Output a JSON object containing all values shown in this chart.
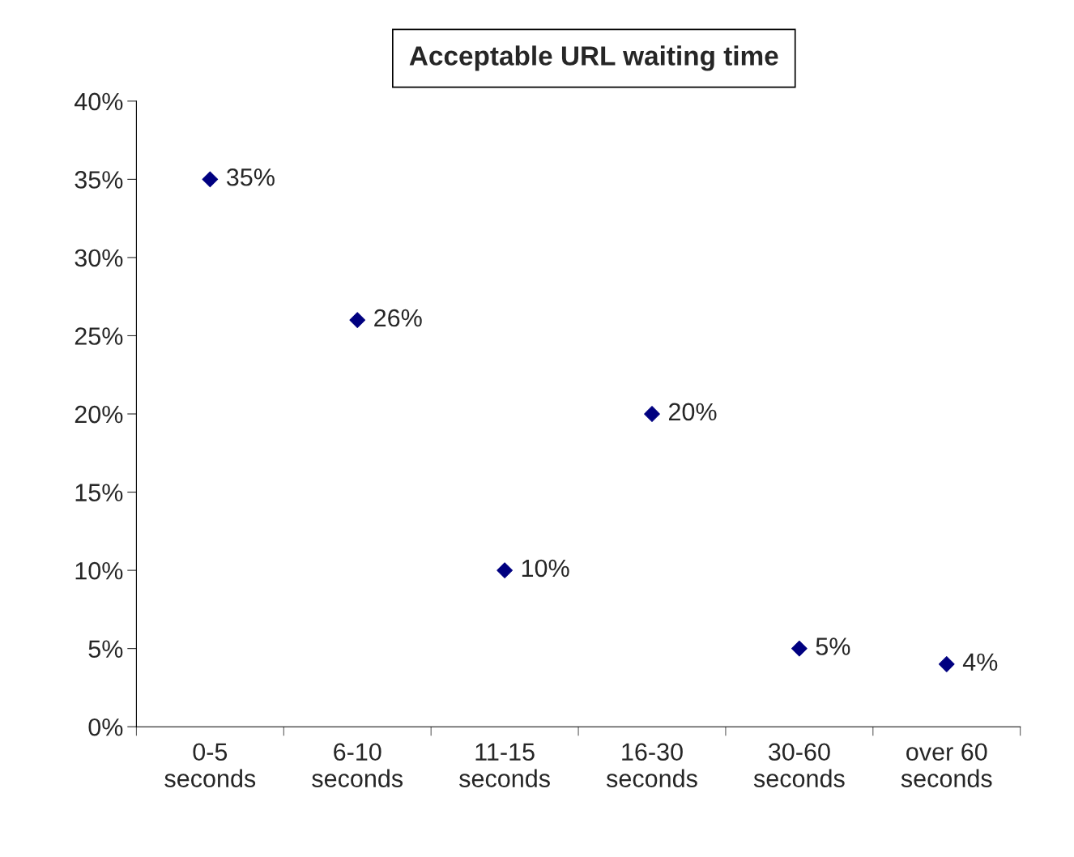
{
  "chart_data": {
    "type": "scatter",
    "title": "Acceptable URL waiting time",
    "categories": [
      "0-5\nseconds",
      "6-10\nseconds",
      "11-15\nseconds",
      "16-30\nseconds",
      "30-60\nseconds",
      "over 60\nseconds"
    ],
    "values": [
      35,
      26,
      10,
      20,
      5,
      4
    ],
    "value_labels": [
      "35%",
      "26%",
      "10%",
      "20%",
      "5%",
      "4%"
    ],
    "color": "#000080",
    "marker": "diamond",
    "ylim": [
      0,
      40
    ],
    "yticks": [
      {
        "value": 0,
        "label": "0%"
      },
      {
        "value": 5,
        "label": "5%"
      },
      {
        "value": 10,
        "label": "10%"
      },
      {
        "value": 15,
        "label": "15%"
      },
      {
        "value": 20,
        "label": "20%"
      },
      {
        "value": 25,
        "label": "25%"
      },
      {
        "value": 30,
        "label": "30%"
      },
      {
        "value": 35,
        "label": "35%"
      },
      {
        "value": 40,
        "label": "40%"
      }
    ],
    "grid": false,
    "legend": false
  }
}
